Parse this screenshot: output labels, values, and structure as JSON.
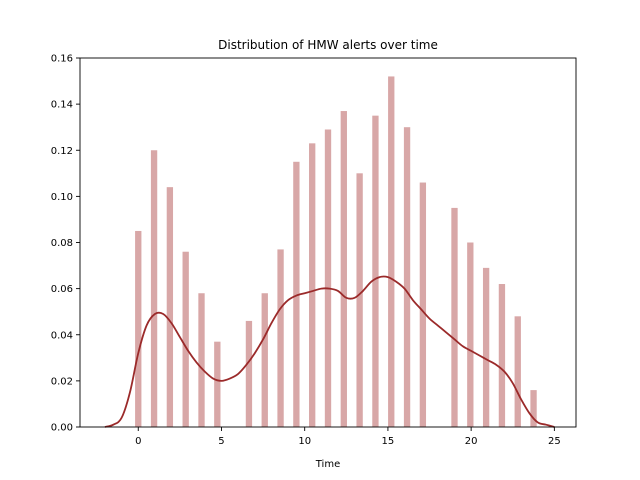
{
  "chart_data": {
    "type": "bar",
    "title": "Distribution of HMW alerts over time",
    "xlabel": "Time",
    "ylabel": "",
    "xlim": [
      -3.5,
      26.3
    ],
    "ylim": [
      0,
      0.16
    ],
    "xticks": [
      0,
      5,
      10,
      15,
      20,
      25
    ],
    "yticks": [
      0.0,
      0.02,
      0.04,
      0.06,
      0.08,
      0.1,
      0.12,
      0.14,
      0.16
    ],
    "grid": false,
    "colors": {
      "bar": "#d8a7a7",
      "kde": "#9b2a2a",
      "axis": "#000000"
    },
    "bars": {
      "x": [
        0,
        0.95,
        1.9,
        2.85,
        3.8,
        4.75,
        6.65,
        7.6,
        8.55,
        9.5,
        10.45,
        11.4,
        12.35,
        13.3,
        14.25,
        15.2,
        16.15,
        17.1,
        19.0,
        19.95,
        20.9,
        21.85,
        22.8,
        23.75
      ],
      "values": [
        0.085,
        0.12,
        0.104,
        0.076,
        0.058,
        0.037,
        0.046,
        0.058,
        0.077,
        0.115,
        0.123,
        0.129,
        0.137,
        0.11,
        0.135,
        0.152,
        0.13,
        0.106,
        0.095,
        0.08,
        0.069,
        0.062,
        0.048,
        0.016
      ],
      "bar_width": 0.38
    },
    "series": [
      {
        "type": "line",
        "x": [
          -2.0,
          -1.5,
          -1.0,
          -0.5,
          0.0,
          0.5,
          1.0,
          1.5,
          2.0,
          2.5,
          3.0,
          3.5,
          4.0,
          4.5,
          5.0,
          5.5,
          6.0,
          6.5,
          7.0,
          7.5,
          8.0,
          8.5,
          9.0,
          9.5,
          10.0,
          10.5,
          11.0,
          11.5,
          12.0,
          12.5,
          13.0,
          13.5,
          14.0,
          14.5,
          15.0,
          15.5,
          16.0,
          16.5,
          17.0,
          17.5,
          18.0,
          18.5,
          19.0,
          19.5,
          20.0,
          20.5,
          21.0,
          21.5,
          22.0,
          22.5,
          23.0,
          23.5,
          24.0,
          24.5,
          25.0
        ],
        "y": [
          0.0,
          0.001,
          0.004,
          0.015,
          0.032,
          0.044,
          0.049,
          0.049,
          0.045,
          0.039,
          0.033,
          0.028,
          0.024,
          0.021,
          0.02,
          0.021,
          0.023,
          0.027,
          0.032,
          0.038,
          0.045,
          0.051,
          0.055,
          0.057,
          0.058,
          0.059,
          0.06,
          0.06,
          0.059,
          0.056,
          0.056,
          0.059,
          0.063,
          0.065,
          0.065,
          0.063,
          0.06,
          0.055,
          0.051,
          0.047,
          0.044,
          0.041,
          0.038,
          0.035,
          0.033,
          0.031,
          0.029,
          0.027,
          0.024,
          0.019,
          0.012,
          0.006,
          0.002,
          0.001,
          0.0
        ]
      }
    ]
  }
}
